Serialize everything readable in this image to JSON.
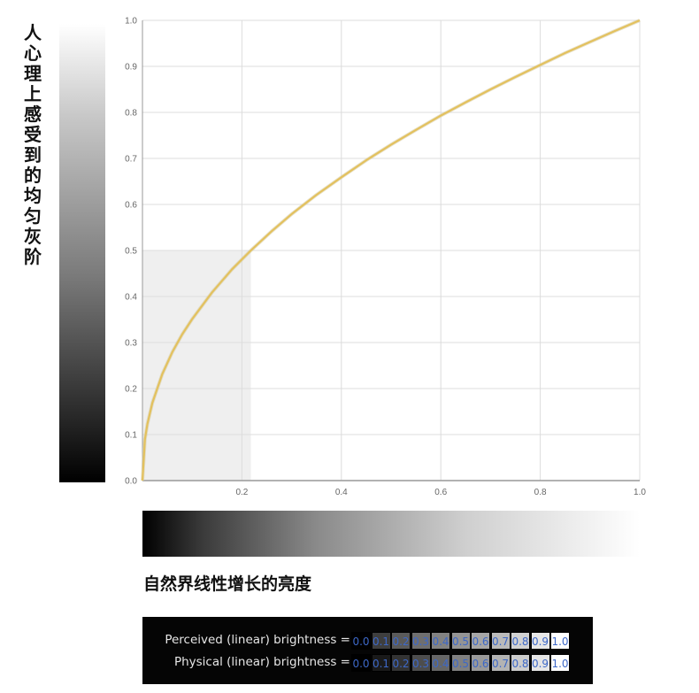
{
  "ylabel": "人心理上感受到的均匀灰阶",
  "xlabel": "自然界线性增长的亮度",
  "chart_data": {
    "type": "line",
    "title": "",
    "xlabel": "自然界线性增长的亮度",
    "ylabel": "人心理上感受到的均匀灰阶",
    "xlim": [
      0,
      1.0
    ],
    "ylim": [
      0,
      1.0
    ],
    "x_ticks": [
      "0.2",
      "0.4",
      "0.6",
      "0.8",
      "1.0"
    ],
    "y_ticks": [
      "0.0",
      "0.1",
      "0.2",
      "0.3",
      "0.4",
      "0.5",
      "0.6",
      "0.7",
      "0.8",
      "0.9",
      "1.0"
    ],
    "grid": true,
    "series": [
      {
        "color": "#e3c15e",
        "x": [
          0,
          0.005,
          0.01,
          0.02,
          0.04,
          0.06,
          0.08,
          0.1,
          0.14,
          0.18,
          0.218,
          0.26,
          0.3,
          0.35,
          0.4,
          0.45,
          0.5,
          0.55,
          0.6,
          0.65,
          0.7,
          0.75,
          0.8,
          0.85,
          0.9,
          0.95,
          1.0
        ],
        "y": [
          0,
          0.09,
          0.123,
          0.169,
          0.232,
          0.279,
          0.318,
          0.351,
          0.409,
          0.459,
          0.5,
          0.542,
          0.579,
          0.621,
          0.659,
          0.696,
          0.73,
          0.762,
          0.793,
          0.822,
          0.85,
          0.877,
          0.903,
          0.929,
          0.953,
          0.977,
          1.0
        ]
      }
    ],
    "highlight_region": {
      "x": [
        0,
        0.218
      ],
      "y": [
        0,
        0.5
      ],
      "color": "#efefef"
    }
  },
  "panel": {
    "rows": [
      {
        "label": "Perceived (linear) brightness =",
        "values": [
          "0.0",
          "0.1",
          "0.2",
          "0.3",
          "0.4",
          "0.5",
          "0.6",
          "0.7",
          "0.8",
          "0.9",
          "1.0"
        ],
        "shades": [
          "#000000",
          "#3e3e3e",
          "#5a5a5a",
          "#6f6f6f",
          "#828282",
          "#949494",
          "#a6a6a6",
          "#bababa",
          "#d1d1d1",
          "#e7e7e7",
          "#ffffff"
        ]
      },
      {
        "label": "Physical (linear) brightness =",
        "values": [
          "0.0",
          "0.1",
          "0.2",
          "0.3",
          "0.4",
          "0.5",
          "0.6",
          "0.7",
          "0.8",
          "0.9",
          "1.0"
        ],
        "shades": [
          "#000000",
          "#1a1a1a",
          "#333333",
          "#4d4d4d",
          "#666666",
          "#808080",
          "#999999",
          "#b3b3b3",
          "#cccccc",
          "#e6e6e6",
          "#ffffff"
        ]
      }
    ]
  }
}
